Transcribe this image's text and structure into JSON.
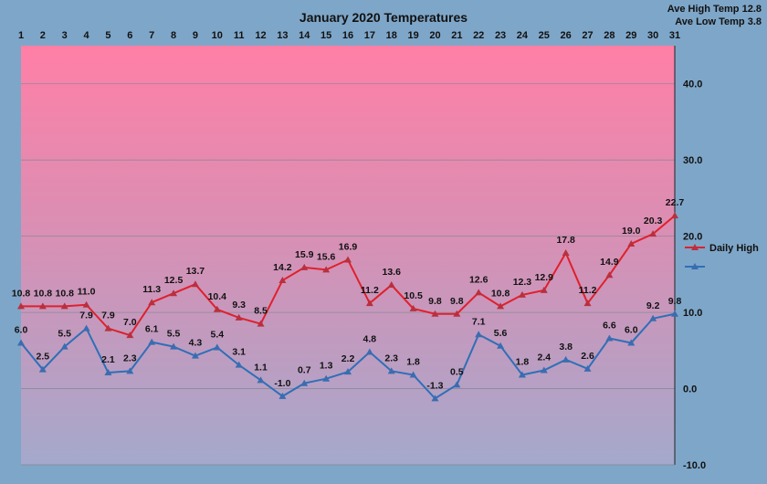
{
  "chart_data": {
    "type": "line",
    "title": "January 2020 Temperatures",
    "stats": [
      "Ave High Temp 12.8",
      "Ave Low Temp 3.8"
    ],
    "x": [
      1,
      2,
      3,
      4,
      5,
      6,
      7,
      8,
      9,
      10,
      11,
      12,
      13,
      14,
      15,
      16,
      17,
      18,
      19,
      20,
      21,
      22,
      23,
      24,
      25,
      26,
      27,
      28,
      29,
      30,
      31
    ],
    "x_axis_position": "top",
    "y_axis_position": "right",
    "ylim": [
      -10,
      45
    ],
    "y_ticks": [
      "40.0",
      "30.0",
      "20.0",
      "10.0",
      "0.0",
      "-10.0"
    ],
    "y_tick_values": [
      40,
      30,
      20,
      10,
      0,
      -10
    ],
    "grid": true,
    "legend_position": "right",
    "series": [
      {
        "name": "Daily High",
        "color": "#e0202c",
        "values": [
          10.8,
          10.8,
          10.8,
          11.0,
          7.9,
          7.0,
          11.3,
          12.5,
          13.7,
          10.4,
          9.3,
          8.5,
          14.2,
          15.9,
          15.6,
          16.9,
          11.2,
          13.6,
          10.5,
          9.8,
          9.8,
          12.6,
          10.8,
          12.3,
          12.9,
          17.8,
          11.2,
          14.9,
          19.0,
          20.3,
          22.7
        ],
        "labels": [
          "10.8",
          "10.8",
          "10.8",
          "11.0",
          "7.9",
          "7.0",
          "11.3",
          "12.5",
          "13.7",
          "10.4",
          "9.3",
          "8.5",
          "14.2",
          "15.9",
          "15.6",
          "16.9",
          "11.2",
          "13.6",
          "10.5",
          "9.8",
          "9.8",
          "12.6",
          "10.8",
          "12.3",
          "12.9",
          "17.8",
          "11.2",
          "14.9",
          "19.0",
          "20.3",
          "22.7"
        ]
      },
      {
        "name": "",
        "color": "#2f6fb8",
        "values": [
          6.0,
          2.5,
          5.5,
          7.9,
          2.1,
          2.3,
          6.1,
          5.5,
          4.3,
          5.4,
          3.1,
          1.1,
          -1.0,
          0.7,
          1.3,
          2.2,
          4.8,
          2.3,
          1.8,
          -1.3,
          0.5,
          7.1,
          5.6,
          1.8,
          2.4,
          3.8,
          2.6,
          6.6,
          6.0,
          9.2,
          9.8
        ],
        "labels": [
          "6.0",
          "2.5",
          "5.5",
          "7.9",
          "2.1",
          "2.3",
          "6.1",
          "5.5",
          "4.3",
          "5.4",
          "3.1",
          "1.1",
          "-1.0",
          "0.7",
          "1.3",
          "2.2",
          "4.8",
          "2.3",
          "1.8",
          "-1.3",
          "0.5",
          "7.1",
          "5.6",
          "1.8",
          "2.4",
          "3.8",
          "2.6",
          "6.6",
          "6.0",
          "9.2",
          "9.8"
        ]
      }
    ]
  }
}
